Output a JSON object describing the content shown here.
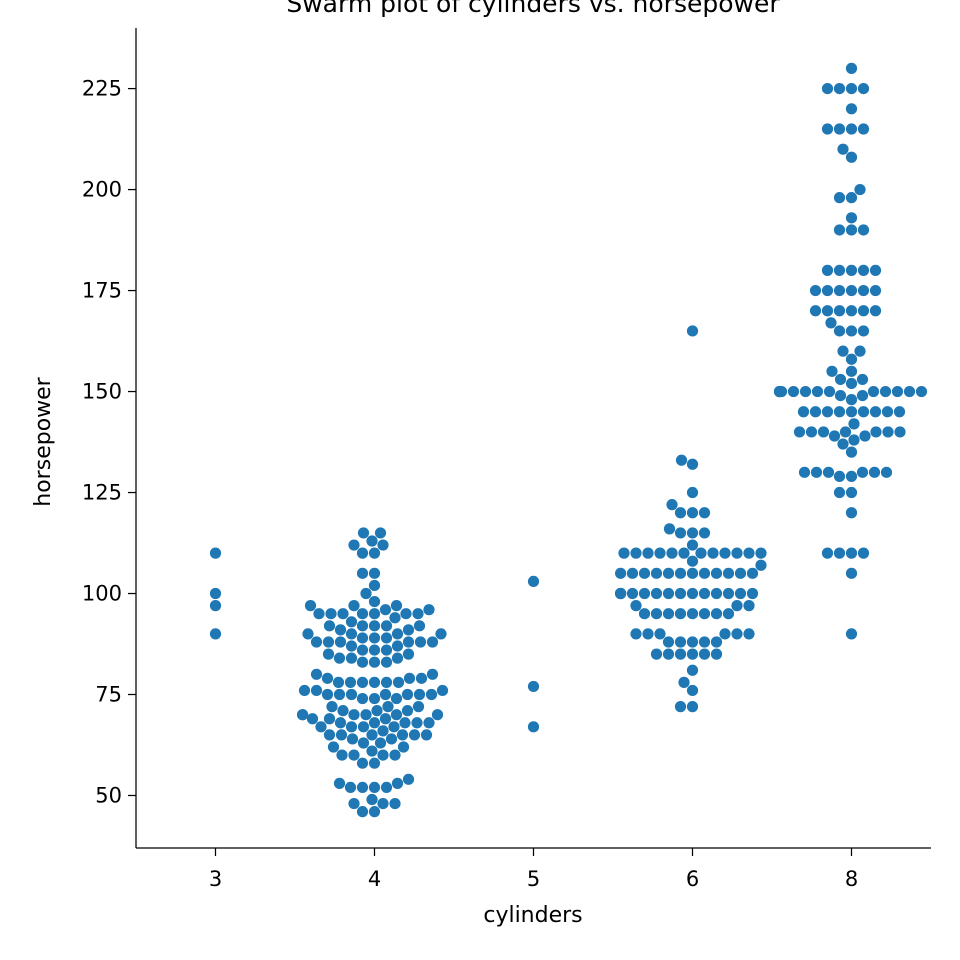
{
  "chart_data": {
    "type": "scatter",
    "subtype": "swarm",
    "title": "Swarm plot of cylinders vs. horsepower",
    "xlabel": "cylinders",
    "ylabel": "horsepower",
    "categories": [
      "3",
      "4",
      "5",
      "6",
      "8"
    ],
    "yticks": [
      50,
      75,
      100,
      125,
      150,
      175,
      200,
      225
    ],
    "ylim": [
      37,
      240
    ],
    "grid": false,
    "color": "#1f77b4",
    "series": [
      {
        "category": "3",
        "values": [
          90,
          97,
          100,
          110
        ]
      },
      {
        "category": "4",
        "values": [
          46,
          46,
          48,
          48,
          48,
          49,
          52,
          52,
          52,
          52,
          53,
          53,
          54,
          58,
          58,
          60,
          60,
          60,
          60,
          61,
          62,
          62,
          63,
          63,
          64,
          64,
          65,
          65,
          65,
          65,
          65,
          65,
          66,
          67,
          67,
          67,
          67,
          68,
          68,
          68,
          68,
          68,
          69,
          69,
          69,
          70,
          70,
          70,
          70,
          70,
          70,
          71,
          71,
          71,
          72,
          72,
          72,
          74,
          74,
          74,
          75,
          75,
          75,
          75,
          75,
          75,
          75,
          76,
          76,
          76,
          78,
          78,
          78,
          78,
          78,
          78,
          79,
          79,
          79,
          80,
          80,
          83,
          83,
          83,
          84,
          84,
          84,
          85,
          85,
          86,
          86,
          86,
          87,
          87,
          88,
          88,
          88,
          88,
          88,
          88,
          89,
          89,
          89,
          90,
          90,
          90,
          90,
          91,
          91,
          92,
          92,
          92,
          92,
          92,
          93,
          94,
          95,
          95,
          95,
          95,
          95,
          95,
          95,
          96,
          96,
          97,
          97,
          97,
          98,
          100,
          102,
          105,
          105,
          110,
          110,
          112,
          112,
          113,
          115,
          115
        ]
      },
      {
        "category": "5",
        "values": [
          67,
          77,
          103
        ]
      },
      {
        "category": "6",
        "values": [
          72,
          72,
          76,
          78,
          81,
          85,
          85,
          85,
          85,
          85,
          85,
          88,
          88,
          88,
          88,
          88,
          90,
          90,
          90,
          90,
          90,
          90,
          95,
          95,
          95,
          95,
          95,
          95,
          95,
          95,
          97,
          97,
          97,
          100,
          100,
          100,
          100,
          100,
          100,
          100,
          100,
          100,
          100,
          100,
          100,
          100,
          100,
          105,
          105,
          105,
          105,
          105,
          105,
          105,
          105,
          105,
          105,
          105,
          105,
          107,
          108,
          110,
          110,
          110,
          110,
          110,
          110,
          110,
          110,
          110,
          110,
          110,
          110,
          112,
          115,
          115,
          115,
          116,
          120,
          120,
          120,
          122,
          125,
          132,
          133,
          165
        ]
      },
      {
        "category": "8",
        "values": [
          90,
          105,
          110,
          110,
          110,
          110,
          120,
          125,
          125,
          129,
          129,
          130,
          130,
          130,
          130,
          130,
          130,
          135,
          137,
          138,
          139,
          139,
          140,
          140,
          140,
          140,
          140,
          140,
          140,
          142,
          145,
          145,
          145,
          145,
          145,
          145,
          145,
          145,
          145,
          148,
          149,
          149,
          150,
          150,
          150,
          150,
          150,
          150,
          150,
          150,
          150,
          150,
          150,
          150,
          150,
          150,
          150,
          150,
          152,
          153,
          153,
          155,
          155,
          158,
          160,
          160,
          165,
          165,
          165,
          167,
          170,
          170,
          170,
          170,
          170,
          170,
          175,
          175,
          175,
          175,
          175,
          175,
          180,
          180,
          180,
          180,
          180,
          190,
          190,
          190,
          193,
          198,
          198,
          200,
          208,
          210,
          215,
          215,
          215,
          215,
          220,
          225,
          225,
          225,
          225,
          230
        ]
      }
    ]
  }
}
